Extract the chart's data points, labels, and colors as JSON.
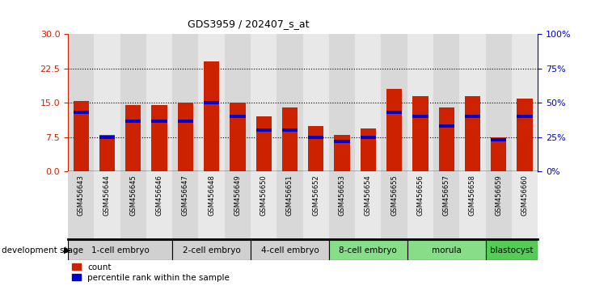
{
  "title": "GDS3959 / 202407_s_at",
  "samples": [
    "GSM456643",
    "GSM456644",
    "GSM456645",
    "GSM456646",
    "GSM456647",
    "GSM456648",
    "GSM456649",
    "GSM456650",
    "GSM456651",
    "GSM456652",
    "GSM456653",
    "GSM456654",
    "GSM456655",
    "GSM456656",
    "GSM456657",
    "GSM456658",
    "GSM456659",
    "GSM456660"
  ],
  "count_values": [
    15.5,
    8.0,
    14.5,
    14.5,
    15.0,
    24.0,
    15.0,
    12.0,
    14.0,
    10.0,
    8.0,
    9.5,
    18.0,
    16.5,
    14.0,
    16.5,
    7.5,
    16.0
  ],
  "percentile_values": [
    43.0,
    25.0,
    37.0,
    37.0,
    37.0,
    50.0,
    40.0,
    30.0,
    30.0,
    25.0,
    22.0,
    25.0,
    43.0,
    40.0,
    33.0,
    40.0,
    23.0,
    40.0
  ],
  "stages": [
    [
      "1-cell embryo",
      0,
      4,
      "#d0d0d0"
    ],
    [
      "2-cell embryo",
      4,
      7,
      "#d0d0d0"
    ],
    [
      "4-cell embryo",
      7,
      10,
      "#d0d0d0"
    ],
    [
      "8-cell embryo",
      10,
      13,
      "#88dd88"
    ],
    [
      "morula",
      13,
      16,
      "#88dd88"
    ],
    [
      "blastocyst",
      16,
      18,
      "#55cc55"
    ]
  ],
  "bar_color": "#cc2200",
  "percentile_color": "#0000cc",
  "ylim_left": [
    0,
    30
  ],
  "ylim_right": [
    0,
    100
  ],
  "yticks_left": [
    0,
    7.5,
    15,
    22.5,
    30
  ],
  "yticks_right": [
    0,
    25,
    50,
    75,
    100
  ],
  "grid_values": [
    7.5,
    15.0,
    22.5
  ],
  "bar_width": 0.6,
  "background_color": "#ffffff",
  "tick_bg_even": "#d8d8d8",
  "tick_bg_odd": "#e8e8e8"
}
